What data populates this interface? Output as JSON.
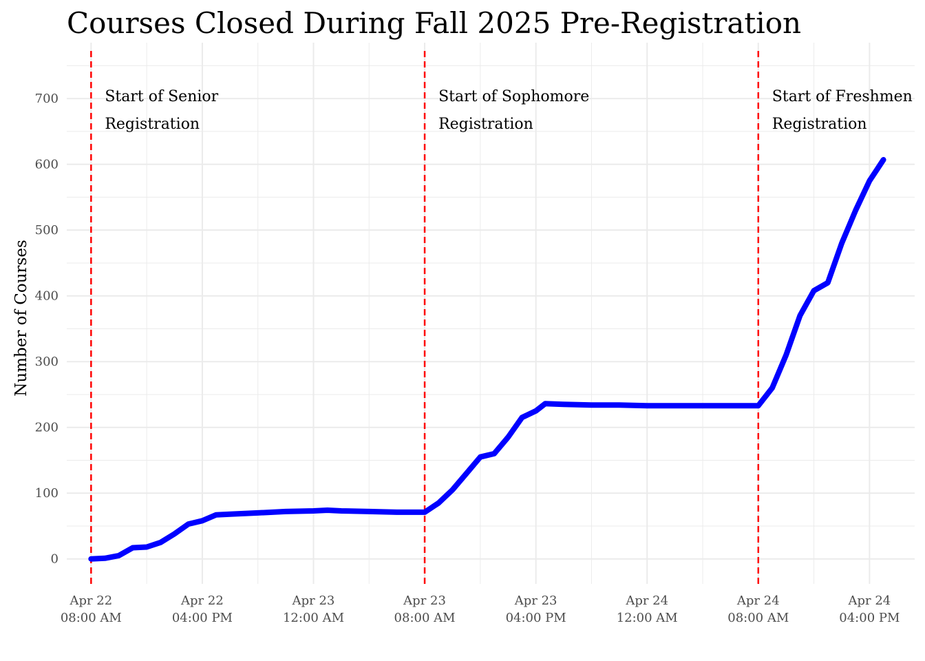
{
  "chart_data": {
    "type": "line",
    "title": "Courses Closed During Fall 2025 Pre-Registration",
    "xlabel": "",
    "ylabel": "Number of Courses",
    "ylim": [
      -38,
      785
    ],
    "xlim": [
      "2025-04-22 06:15",
      "2025-04-24 19:15"
    ],
    "grid": true,
    "legend": "none",
    "line_color": "#0000ff",
    "vline_color": "#ff0000",
    "y_ticks": [
      "0",
      "100",
      "200",
      "300",
      "400",
      "500",
      "600",
      "700"
    ],
    "x_ticks": [
      {
        "x": "2025-04-22 08:00",
        "line1": "Apr 22",
        "line2": "08:00 AM"
      },
      {
        "x": "2025-04-22 16:00",
        "line1": "Apr 22",
        "line2": "04:00 PM"
      },
      {
        "x": "2025-04-23 00:00",
        "line1": "Apr 23",
        "line2": "12:00 AM"
      },
      {
        "x": "2025-04-23 08:00",
        "line1": "Apr 23",
        "line2": "08:00 AM"
      },
      {
        "x": "2025-04-23 16:00",
        "line1": "Apr 23",
        "line2": "04:00 PM"
      },
      {
        "x": "2025-04-24 00:00",
        "line1": "Apr 24",
        "line2": "12:00 AM"
      },
      {
        "x": "2025-04-24 08:00",
        "line1": "Apr 24",
        "line2": "08:00 AM"
      },
      {
        "x": "2025-04-24 16:00",
        "line1": "Apr 24",
        "line2": "04:00 PM"
      }
    ],
    "annotations": [
      {
        "x": "2025-04-22 08:00",
        "line1": "Start of Senior",
        "line2": "Registration"
      },
      {
        "x": "2025-04-23 08:00",
        "line1": "Start of Sophomore",
        "line2": "Registration"
      },
      {
        "x": "2025-04-24 08:00",
        "line1": "Start of Freshmen",
        "line2": "Registration"
      }
    ],
    "series": [
      {
        "points": [
          [
            "2025-04-22 08:00",
            0
          ],
          [
            "2025-04-22 09:00",
            1
          ],
          [
            "2025-04-22 10:00",
            5
          ],
          [
            "2025-04-22 11:00",
            17
          ],
          [
            "2025-04-22 12:00",
            18
          ],
          [
            "2025-04-22 13:00",
            25
          ],
          [
            "2025-04-22 14:00",
            38
          ],
          [
            "2025-04-22 15:00",
            53
          ],
          [
            "2025-04-22 16:00",
            58
          ],
          [
            "2025-04-22 17:00",
            67
          ],
          [
            "2025-04-22 18:00",
            68
          ],
          [
            "2025-04-22 20:00",
            70
          ],
          [
            "2025-04-22 22:00",
            72
          ],
          [
            "2025-04-23 00:00",
            73
          ],
          [
            "2025-04-23 01:00",
            74
          ],
          [
            "2025-04-23 02:00",
            73
          ],
          [
            "2025-04-23 04:00",
            72
          ],
          [
            "2025-04-23 06:00",
            71
          ],
          [
            "2025-04-23 08:00",
            71
          ],
          [
            "2025-04-23 09:00",
            85
          ],
          [
            "2025-04-23 10:00",
            105
          ],
          [
            "2025-04-23 11:00",
            130
          ],
          [
            "2025-04-23 12:00",
            155
          ],
          [
            "2025-04-23 13:00",
            160
          ],
          [
            "2025-04-23 14:00",
            185
          ],
          [
            "2025-04-23 15:00",
            215
          ],
          [
            "2025-04-23 16:00",
            225
          ],
          [
            "2025-04-23 16:40",
            236
          ],
          [
            "2025-04-23 18:00",
            235
          ],
          [
            "2025-04-23 20:00",
            234
          ],
          [
            "2025-04-23 22:00",
            234
          ],
          [
            "2025-04-24 00:00",
            233
          ],
          [
            "2025-04-24 02:00",
            233
          ],
          [
            "2025-04-24 04:00",
            233
          ],
          [
            "2025-04-24 06:00",
            233
          ],
          [
            "2025-04-24 08:00",
            233
          ],
          [
            "2025-04-24 09:00",
            260
          ],
          [
            "2025-04-24 10:00",
            310
          ],
          [
            "2025-04-24 11:00",
            370
          ],
          [
            "2025-04-24 12:00",
            408
          ],
          [
            "2025-04-24 13:00",
            420
          ],
          [
            "2025-04-24 14:00",
            480
          ],
          [
            "2025-04-24 15:00",
            530
          ],
          [
            "2025-04-24 16:00",
            575
          ],
          [
            "2025-04-24 17:00",
            607
          ]
        ]
      }
    ]
  }
}
